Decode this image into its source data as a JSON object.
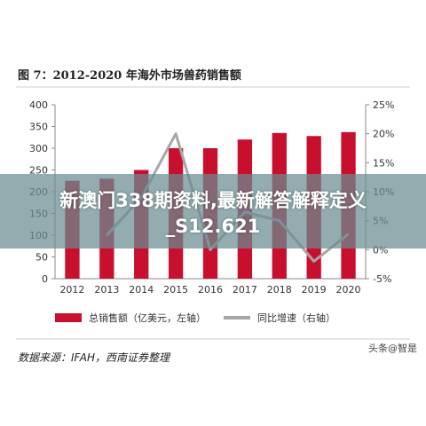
{
  "figure": {
    "title": "图 7：2012-2020 年海外市场兽药销售额",
    "source": "数据来源：IFAH，西南证券整理",
    "watermark": "头条@智是"
  },
  "banner": {
    "line1": "新澳门338期资料,最新解答解释定义",
    "line2": "_S12.621"
  },
  "colors": {
    "bar": "#c8102e",
    "line": "#a6a6a6",
    "axis": "#888888",
    "text": "#333333",
    "banner": "#698c91"
  },
  "chart_data": {
    "type": "bar",
    "categories": [
      "2012",
      "2013",
      "2014",
      "2015",
      "2016",
      "2017",
      "2018",
      "2019",
      "2020"
    ],
    "series": [
      {
        "name": "总销售额（亿美元，左轴）",
        "type": "bar",
        "axis": "left",
        "values": [
          225,
          230,
          250,
          300,
          300,
          320,
          335,
          328,
          337
        ]
      },
      {
        "name": "同比增速（右轴）",
        "type": "line",
        "axis": "right",
        "values": [
          null,
          2.5,
          9.0,
          20.0,
          0.0,
          6.5,
          5.0,
          -2.0,
          2.7
        ]
      }
    ],
    "left_axis": {
      "ylim": [
        0,
        400
      ],
      "ticks": [
        "0",
        "50",
        "100",
        "150",
        "200",
        "250",
        "300",
        "350",
        "400"
      ]
    },
    "right_axis": {
      "ylim": [
        -5,
        25
      ],
      "ticks": [
        "-5%",
        "0%",
        "5%",
        "10%",
        "15%",
        "20%",
        "25%"
      ]
    },
    "legend_position": "bottom",
    "grid": false
  }
}
